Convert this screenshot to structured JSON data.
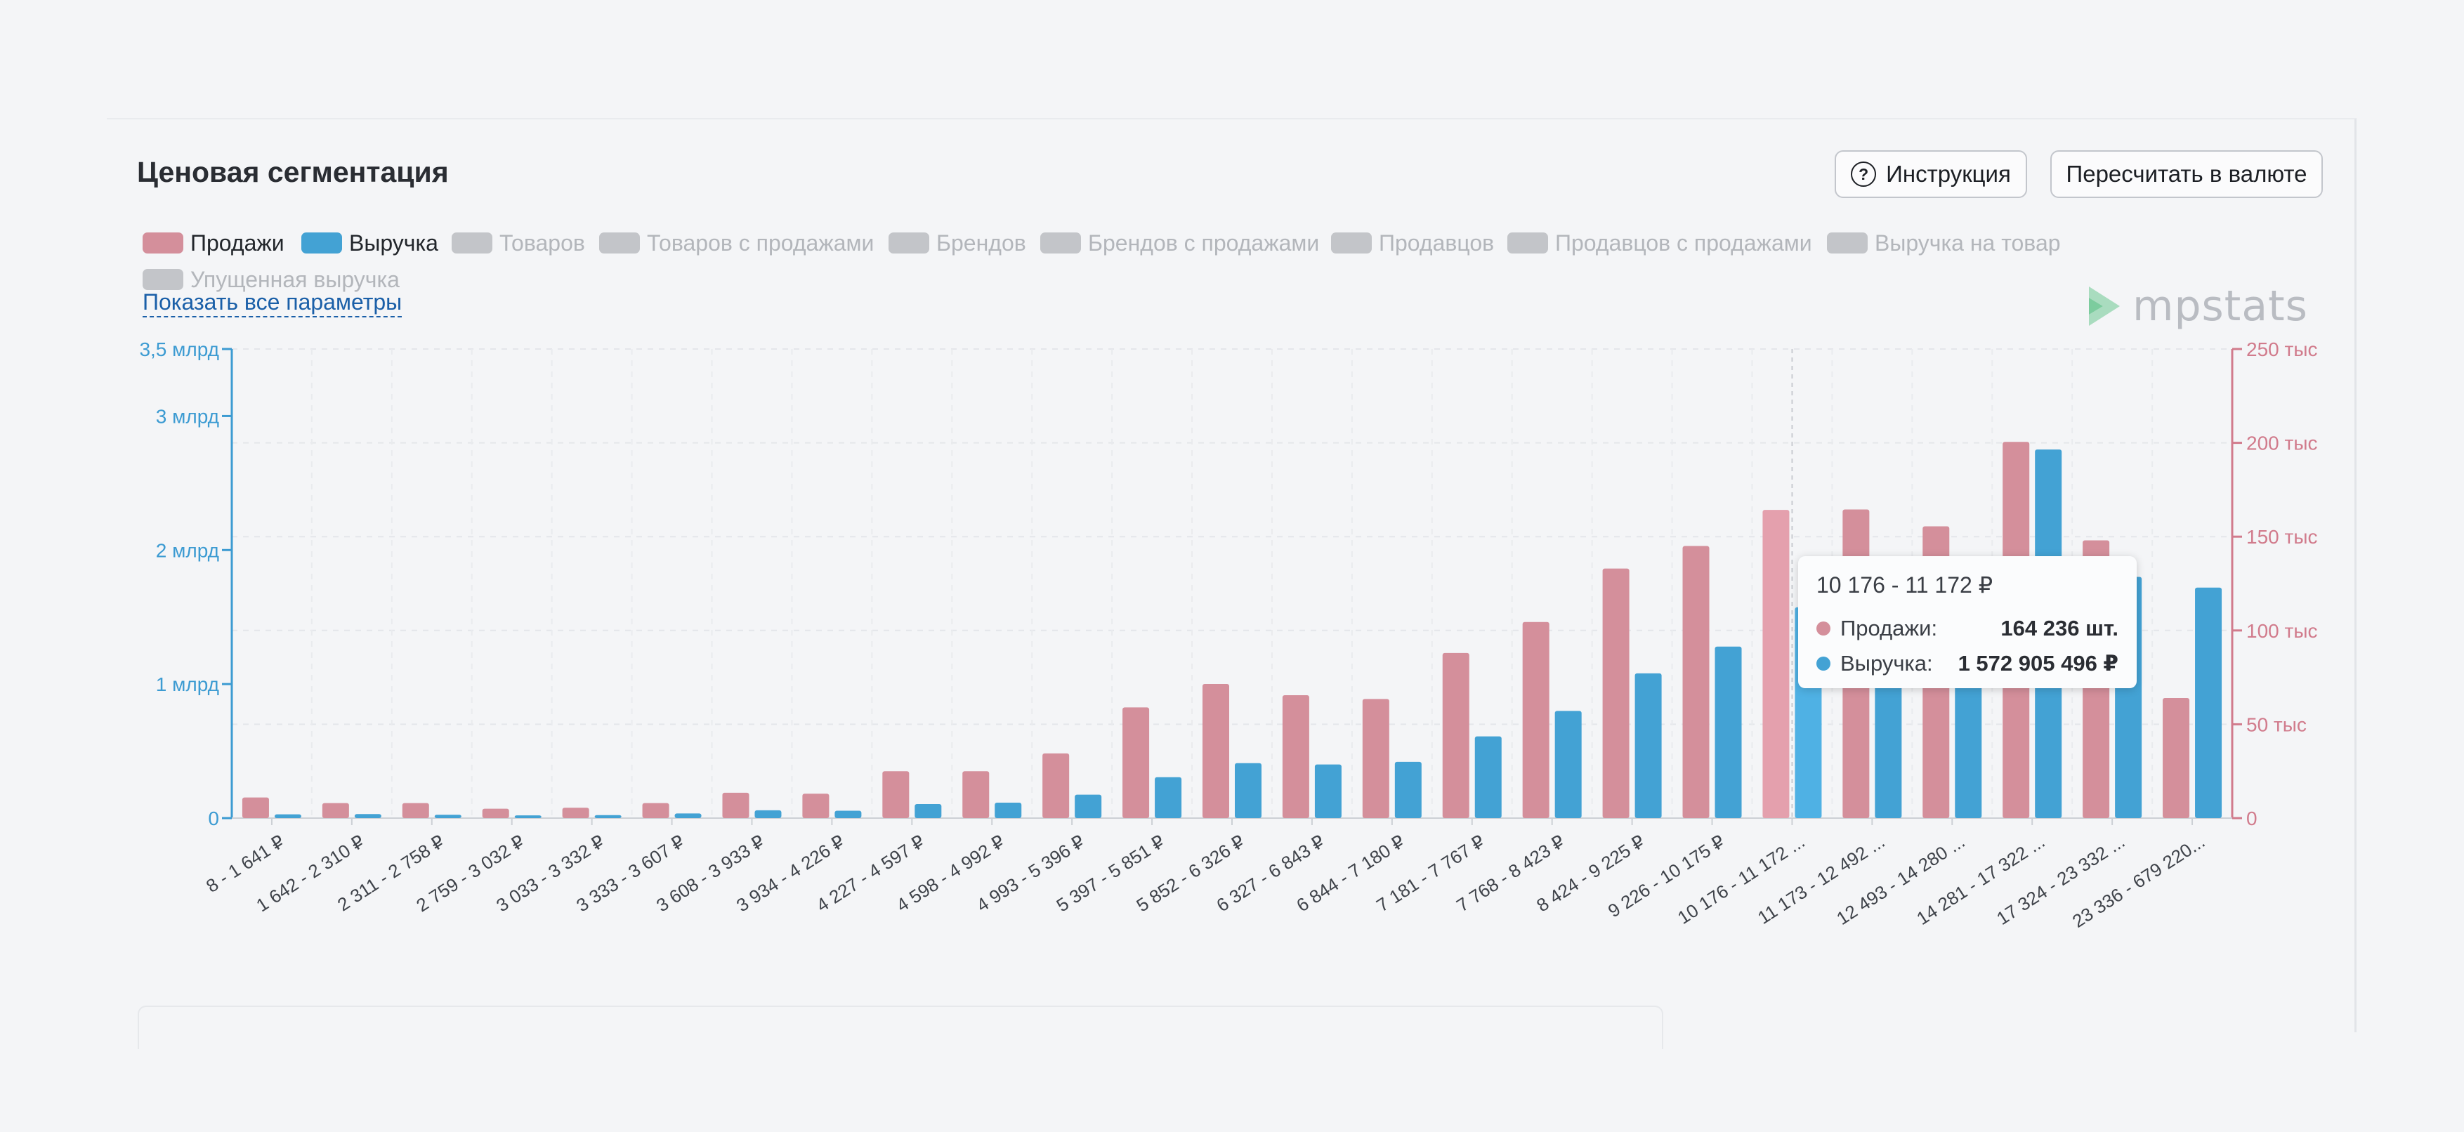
{
  "header": {
    "title": "Ценовая сегментация"
  },
  "buttons": {
    "help_label": "Инструкция",
    "help_icon": "?",
    "convert_label": "Пересчитать в валюте"
  },
  "legend": [
    {
      "label": "Продажи",
      "active": true,
      "color": "#d48f9b"
    },
    {
      "label": "Выручка",
      "active": true,
      "color": "#43a2d4"
    },
    {
      "label": "Товаров",
      "active": false
    },
    {
      "label": "Товаров с продажами",
      "active": false
    },
    {
      "label": "Брендов",
      "active": false
    },
    {
      "label": "Брендов с продажами",
      "active": false
    },
    {
      "label": "Продавцов",
      "active": false
    },
    {
      "label": "Продавцов с продажами",
      "active": false
    },
    {
      "label": "Выручка на товар",
      "active": false
    },
    {
      "label": "Упущенная выручка",
      "active": false
    }
  ],
  "show_all_label": "Показать все параметры",
  "logo": {
    "text": "mpstats",
    "icon": "mpstats-logo-icon"
  },
  "tooltip": {
    "title": "10 176 - 11 172 ₽",
    "rows": [
      {
        "label": "Продажи:",
        "value": "164 236 шт.",
        "color": "#d48f9b"
      },
      {
        "label": "Выручка:",
        "value": "1 572 905 496 ₽",
        "color": "#43a2d4"
      }
    ]
  },
  "chart_data": {
    "type": "bar",
    "categories": [
      "8 - 1 641 ₽",
      "1 642 - 2 310 ₽",
      "2 311 - 2 758 ₽",
      "2 759 - 3 032 ₽",
      "3 033 - 3 332 ₽",
      "3 333 - 3 607 ₽",
      "3 608 - 3 933 ₽",
      "3 934 - 4 226 ₽",
      "4 227 - 4 597 ₽",
      "4 598 - 4 992 ₽",
      "4 993 - 5 396 ₽",
      "5 397 - 5 851 ₽",
      "5 852 - 6 326 ₽",
      "6 327 - 6 843 ₽",
      "6 844 - 7 180 ₽",
      "7 181 - 7 767 ₽",
      "7 768 - 8 423 ₽",
      "8 424 - 9 225 ₽",
      "9 226 - 10 175 ₽",
      "10 176 - 11 172 ...",
      "11 173 - 12 492 ...",
      "12 493 - 14 280 ...",
      "14 281 - 17 322 ...",
      "17 324 - 23 332 ...",
      "23 336 - 679 220..."
    ],
    "series": [
      {
        "name": "Продажи",
        "axis": "right",
        "color": "#d48f9b",
        "values": [
          11000,
          8000,
          8000,
          5000,
          5500,
          8000,
          13500,
          13000,
          25000,
          25000,
          34500,
          59000,
          71500,
          65500,
          63500,
          88000,
          104500,
          133000,
          145000,
          164236,
          164500,
          155500,
          200500,
          148000,
          64000
        ]
      },
      {
        "name": "Выручка",
        "axis": "left",
        "color": "#43a2d4",
        "values": [
          28000000,
          30000000,
          25000000,
          20000000,
          22000000,
          35000000,
          58000000,
          55000000,
          105000000,
          115000000,
          175000000,
          305000000,
          410000000,
          400000000,
          420000000,
          610000000,
          800000000,
          1080000000,
          1280000000,
          1572905496,
          1580000000,
          1590000000,
          2750000000,
          1800000000,
          1720000000
        ]
      }
    ],
    "y_left": {
      "min": 0,
      "max": 3500000000,
      "ticks": [
        0,
        1000000000,
        2000000000,
        3000000000,
        3500000000
      ],
      "tick_labels": [
        "0",
        "1 млрд",
        "2 млрд",
        "3 млрд",
        "3,5 млрд"
      ],
      "color": "#3c9bd2"
    },
    "y_right": {
      "min": 0,
      "max": 250000,
      "ticks": [
        0,
        50000,
        100000,
        150000,
        200000,
        250000
      ],
      "tick_labels": [
        "0",
        "50 тыс",
        "100 тыс",
        "150 тыс",
        "200 тыс",
        "250 тыс"
      ],
      "color": "#d17b8c"
    },
    "highlight_index": 19,
    "grid": true,
    "legend_position": "top-left"
  }
}
